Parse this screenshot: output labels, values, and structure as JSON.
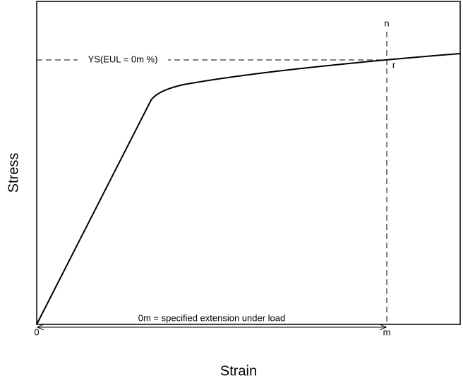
{
  "axes": {
    "x_label": "Strain",
    "y_label": "Stress"
  },
  "labels": {
    "origin": "0",
    "m": "m",
    "n": "n",
    "r": "r",
    "ys": "YS(EUL = 0m %)",
    "extension": "0m = specified extension under load"
  }
}
